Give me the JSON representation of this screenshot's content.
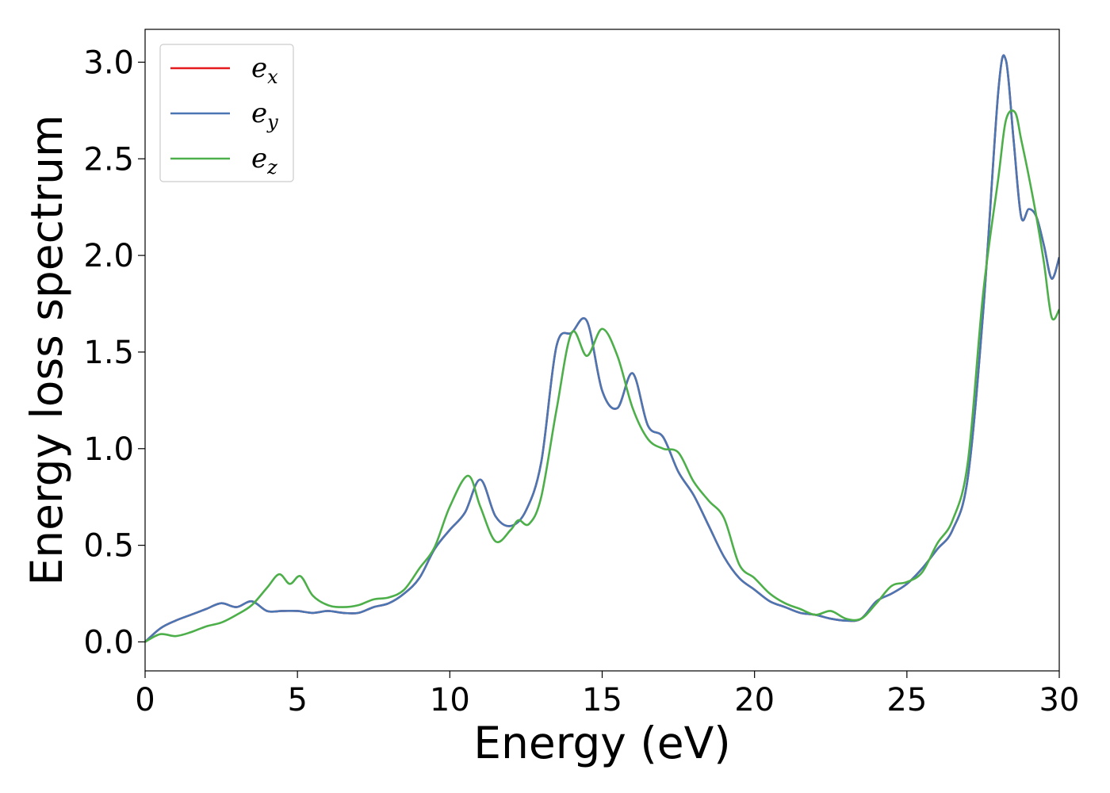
{
  "chart_data": {
    "type": "line",
    "title": "",
    "xlabel": "Energy (eV)",
    "ylabel": "Energy loss spectrum",
    "xlim": [
      0,
      30
    ],
    "ylim": [
      -0.15,
      3.17
    ],
    "xticks": [
      0,
      5,
      10,
      15,
      20,
      25,
      30
    ],
    "xtick_labels": [
      "0",
      "5",
      "10",
      "15",
      "20",
      "25",
      "30"
    ],
    "yticks": [
      0.0,
      0.5,
      1.0,
      1.5,
      2.0,
      2.5,
      3.0
    ],
    "ytick_labels": [
      "0.0",
      "0.5",
      "1.0",
      "1.5",
      "2.0",
      "2.5",
      "3.0"
    ],
    "grid": false,
    "legend_position": "top-left",
    "series": [
      {
        "name": "e_x",
        "label_base": "e",
        "label_sub": "x",
        "color": "#e41a1c",
        "x": [
          0,
          0.5,
          1,
          1.5,
          2,
          2.5,
          3,
          3.5,
          4,
          4.5,
          5,
          5.5,
          6,
          6.5,
          7,
          7.5,
          8,
          8.5,
          9,
          9.5,
          10,
          10.5,
          11,
          11.5,
          12,
          12.5,
          13,
          13.5,
          14,
          14.5,
          15,
          15.5,
          16,
          16.5,
          17,
          17.5,
          18,
          18.5,
          19,
          19.5,
          20,
          20.5,
          21,
          21.5,
          22,
          22.5,
          23,
          23.5,
          24,
          24.5,
          25,
          25.5,
          26,
          26.5,
          27,
          27.5,
          28,
          28.25,
          28.5,
          28.75,
          29,
          29.25,
          29.5,
          29.75,
          30
        ],
        "y": [
          0.0,
          0.07,
          0.11,
          0.14,
          0.17,
          0.2,
          0.18,
          0.21,
          0.16,
          0.16,
          0.16,
          0.15,
          0.16,
          0.15,
          0.15,
          0.18,
          0.2,
          0.25,
          0.33,
          0.48,
          0.58,
          0.67,
          0.84,
          0.65,
          0.6,
          0.68,
          0.93,
          1.53,
          1.6,
          1.66,
          1.3,
          1.21,
          1.39,
          1.12,
          1.06,
          0.88,
          0.76,
          0.6,
          0.44,
          0.33,
          0.27,
          0.21,
          0.18,
          0.15,
          0.14,
          0.12,
          0.11,
          0.12,
          0.21,
          0.25,
          0.3,
          0.38,
          0.48,
          0.58,
          0.85,
          1.7,
          2.85,
          3.01,
          2.6,
          2.2,
          2.24,
          2.2,
          2.05,
          1.88,
          1.99
        ]
      },
      {
        "name": "e_y",
        "label_base": "e",
        "label_sub": "y",
        "color": "#4a77b4",
        "x": [
          0,
          0.5,
          1,
          1.5,
          2,
          2.5,
          3,
          3.5,
          4,
          4.5,
          5,
          5.5,
          6,
          6.5,
          7,
          7.5,
          8,
          8.5,
          9,
          9.5,
          10,
          10.5,
          11,
          11.5,
          12,
          12.5,
          13,
          13.5,
          14,
          14.5,
          15,
          15.5,
          16,
          16.5,
          17,
          17.5,
          18,
          18.5,
          19,
          19.5,
          20,
          20.5,
          21,
          21.5,
          22,
          22.5,
          23,
          23.5,
          24,
          24.5,
          25,
          25.5,
          26,
          26.5,
          27,
          27.5,
          28,
          28.25,
          28.5,
          28.75,
          29,
          29.25,
          29.5,
          29.75,
          30
        ],
        "y": [
          0.0,
          0.07,
          0.11,
          0.14,
          0.17,
          0.2,
          0.18,
          0.21,
          0.16,
          0.16,
          0.16,
          0.15,
          0.16,
          0.15,
          0.15,
          0.18,
          0.2,
          0.25,
          0.33,
          0.48,
          0.58,
          0.67,
          0.84,
          0.65,
          0.6,
          0.68,
          0.93,
          1.53,
          1.6,
          1.66,
          1.3,
          1.21,
          1.39,
          1.12,
          1.06,
          0.88,
          0.76,
          0.6,
          0.44,
          0.33,
          0.27,
          0.21,
          0.18,
          0.15,
          0.14,
          0.12,
          0.11,
          0.12,
          0.21,
          0.25,
          0.3,
          0.38,
          0.48,
          0.58,
          0.85,
          1.7,
          2.85,
          3.01,
          2.6,
          2.2,
          2.24,
          2.2,
          2.05,
          1.88,
          1.99
        ]
      },
      {
        "name": "e_z",
        "label_base": "e",
        "label_sub": "z",
        "color": "#4daf4a",
        "x": [
          0,
          0.5,
          1,
          1.5,
          2,
          2.5,
          3,
          3.5,
          4,
          4.4,
          4.75,
          5.1,
          5.5,
          6,
          6.5,
          7,
          7.5,
          8,
          8.5,
          9,
          9.5,
          10,
          10.6,
          11,
          11.5,
          12,
          12.25,
          12.6,
          13,
          13.5,
          14,
          14.5,
          15,
          15.5,
          16,
          16.5,
          17,
          17.5,
          18,
          18.5,
          19,
          19.5,
          20,
          20.5,
          21,
          21.5,
          22,
          22.5,
          23,
          23.5,
          24,
          24.5,
          25,
          25.5,
          26,
          26.5,
          27,
          27.5,
          28,
          28.25,
          28.55,
          28.75,
          29,
          29.25,
          29.5,
          29.75,
          30
        ],
        "y": [
          0.0,
          0.04,
          0.03,
          0.05,
          0.08,
          0.1,
          0.14,
          0.19,
          0.28,
          0.35,
          0.3,
          0.34,
          0.24,
          0.19,
          0.18,
          0.19,
          0.22,
          0.23,
          0.27,
          0.38,
          0.49,
          0.7,
          0.86,
          0.7,
          0.52,
          0.58,
          0.63,
          0.61,
          0.75,
          1.2,
          1.6,
          1.48,
          1.62,
          1.48,
          1.21,
          1.05,
          1.0,
          0.98,
          0.83,
          0.73,
          0.64,
          0.4,
          0.33,
          0.25,
          0.2,
          0.17,
          0.14,
          0.16,
          0.12,
          0.12,
          0.2,
          0.29,
          0.31,
          0.36,
          0.51,
          0.63,
          0.93,
          1.8,
          2.4,
          2.7,
          2.74,
          2.6,
          2.41,
          2.2,
          1.96,
          1.68,
          1.72
        ]
      }
    ]
  }
}
